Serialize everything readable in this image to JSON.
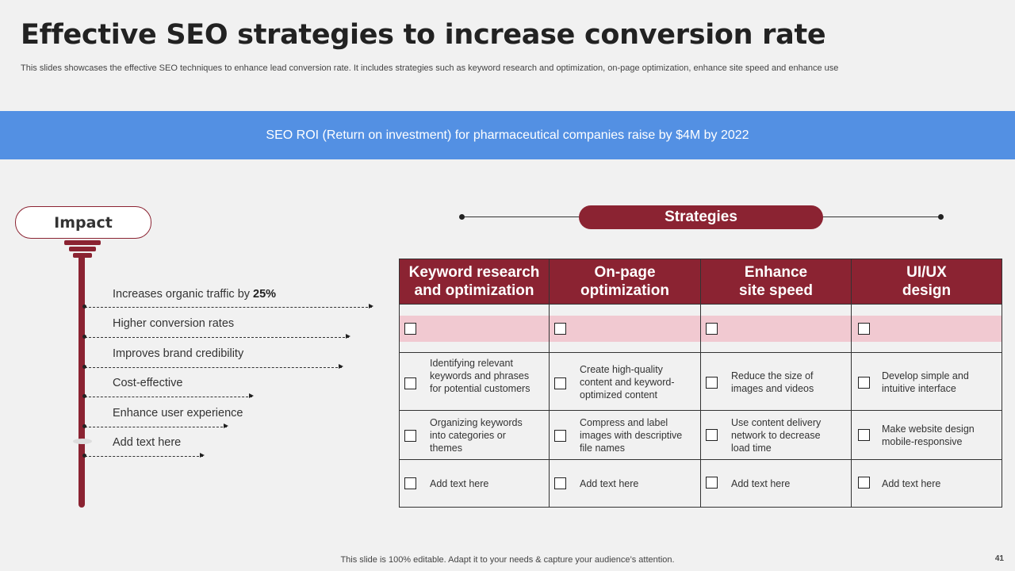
{
  "slide": {
    "title": "Effective SEO strategies to increase conversion rate",
    "subtitle": "This slides showcases the effective SEO techniques to enhance lead conversion rate. It includes strategies such as keyword research and optimization, on-page optimization, enhance site speed and enhance use",
    "banner": "SEO ROI (Return on investment) for pharmaceutical companies raise by $4M by 2022",
    "footer": "This slide is 100% editable. Adapt it to your needs & capture your audience’s attention.",
    "page_number": "41"
  },
  "impact": {
    "label": "Impact",
    "items": [
      {
        "text": "Increases organic traffic by ",
        "bold": "25%"
      },
      {
        "text": "Higher conversion rates"
      },
      {
        "text": "Improves brand credibility"
      },
      {
        "text": "Cost-effective"
      },
      {
        "text": "Enhance user experience"
      },
      {
        "text": "Add text here"
      }
    ]
  },
  "strategies": {
    "label": "Strategies",
    "columns": [
      {
        "title": "Keyword research\nand optimization",
        "rows": [
          "Identifying relevant keywords and phrases for potential customers",
          "Organizing keywords into categories or themes",
          "Add text here"
        ]
      },
      {
        "title": "On-page\noptimization",
        "rows": [
          "Create high-quality content and keyword-optimized content",
          "Compress and label images with descriptive file names",
          "Add text here"
        ]
      },
      {
        "title": "Enhance\nsite speed",
        "rows": [
          "Reduce the size of images and videos",
          "Use content delivery network to decrease load time",
          "Add text here"
        ]
      },
      {
        "title": "UI/UX\ndesign",
        "rows": [
          "Develop simple and intuitive interface",
          "Make website design mobile-responsive",
          "Add text here"
        ]
      }
    ]
  },
  "colors": {
    "accent": "#8b2332",
    "banner": "#5390e3",
    "pink_band": "#f1c9d1"
  }
}
